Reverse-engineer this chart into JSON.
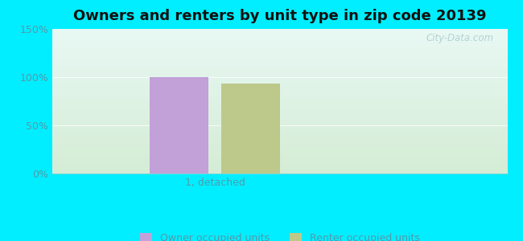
{
  "title": "Owners and renters by unit type in zip code 20139",
  "categories": [
    "1, detached"
  ],
  "owner_values": [
    100
  ],
  "renter_values": [
    93
  ],
  "owner_color": "#c2a0d8",
  "renter_color": "#bcc98a",
  "ylim": [
    0,
    150
  ],
  "yticks": [
    0,
    50,
    100,
    150
  ],
  "ytick_labels": [
    "0%",
    "50%",
    "100%",
    "150%"
  ],
  "background_cyan": "#00eeff",
  "bg_top": "#e8f8f4",
  "bg_bottom": "#d4ecd4",
  "watermark": "City-Data.com",
  "legend_owner": "Owner occupied units",
  "legend_renter": "Renter occupied units",
  "bar_width": 0.18,
  "title_fontsize": 13,
  "tick_fontsize": 9,
  "legend_fontsize": 9,
  "tick_color": "#5599aa",
  "label_color": "#5599aa"
}
